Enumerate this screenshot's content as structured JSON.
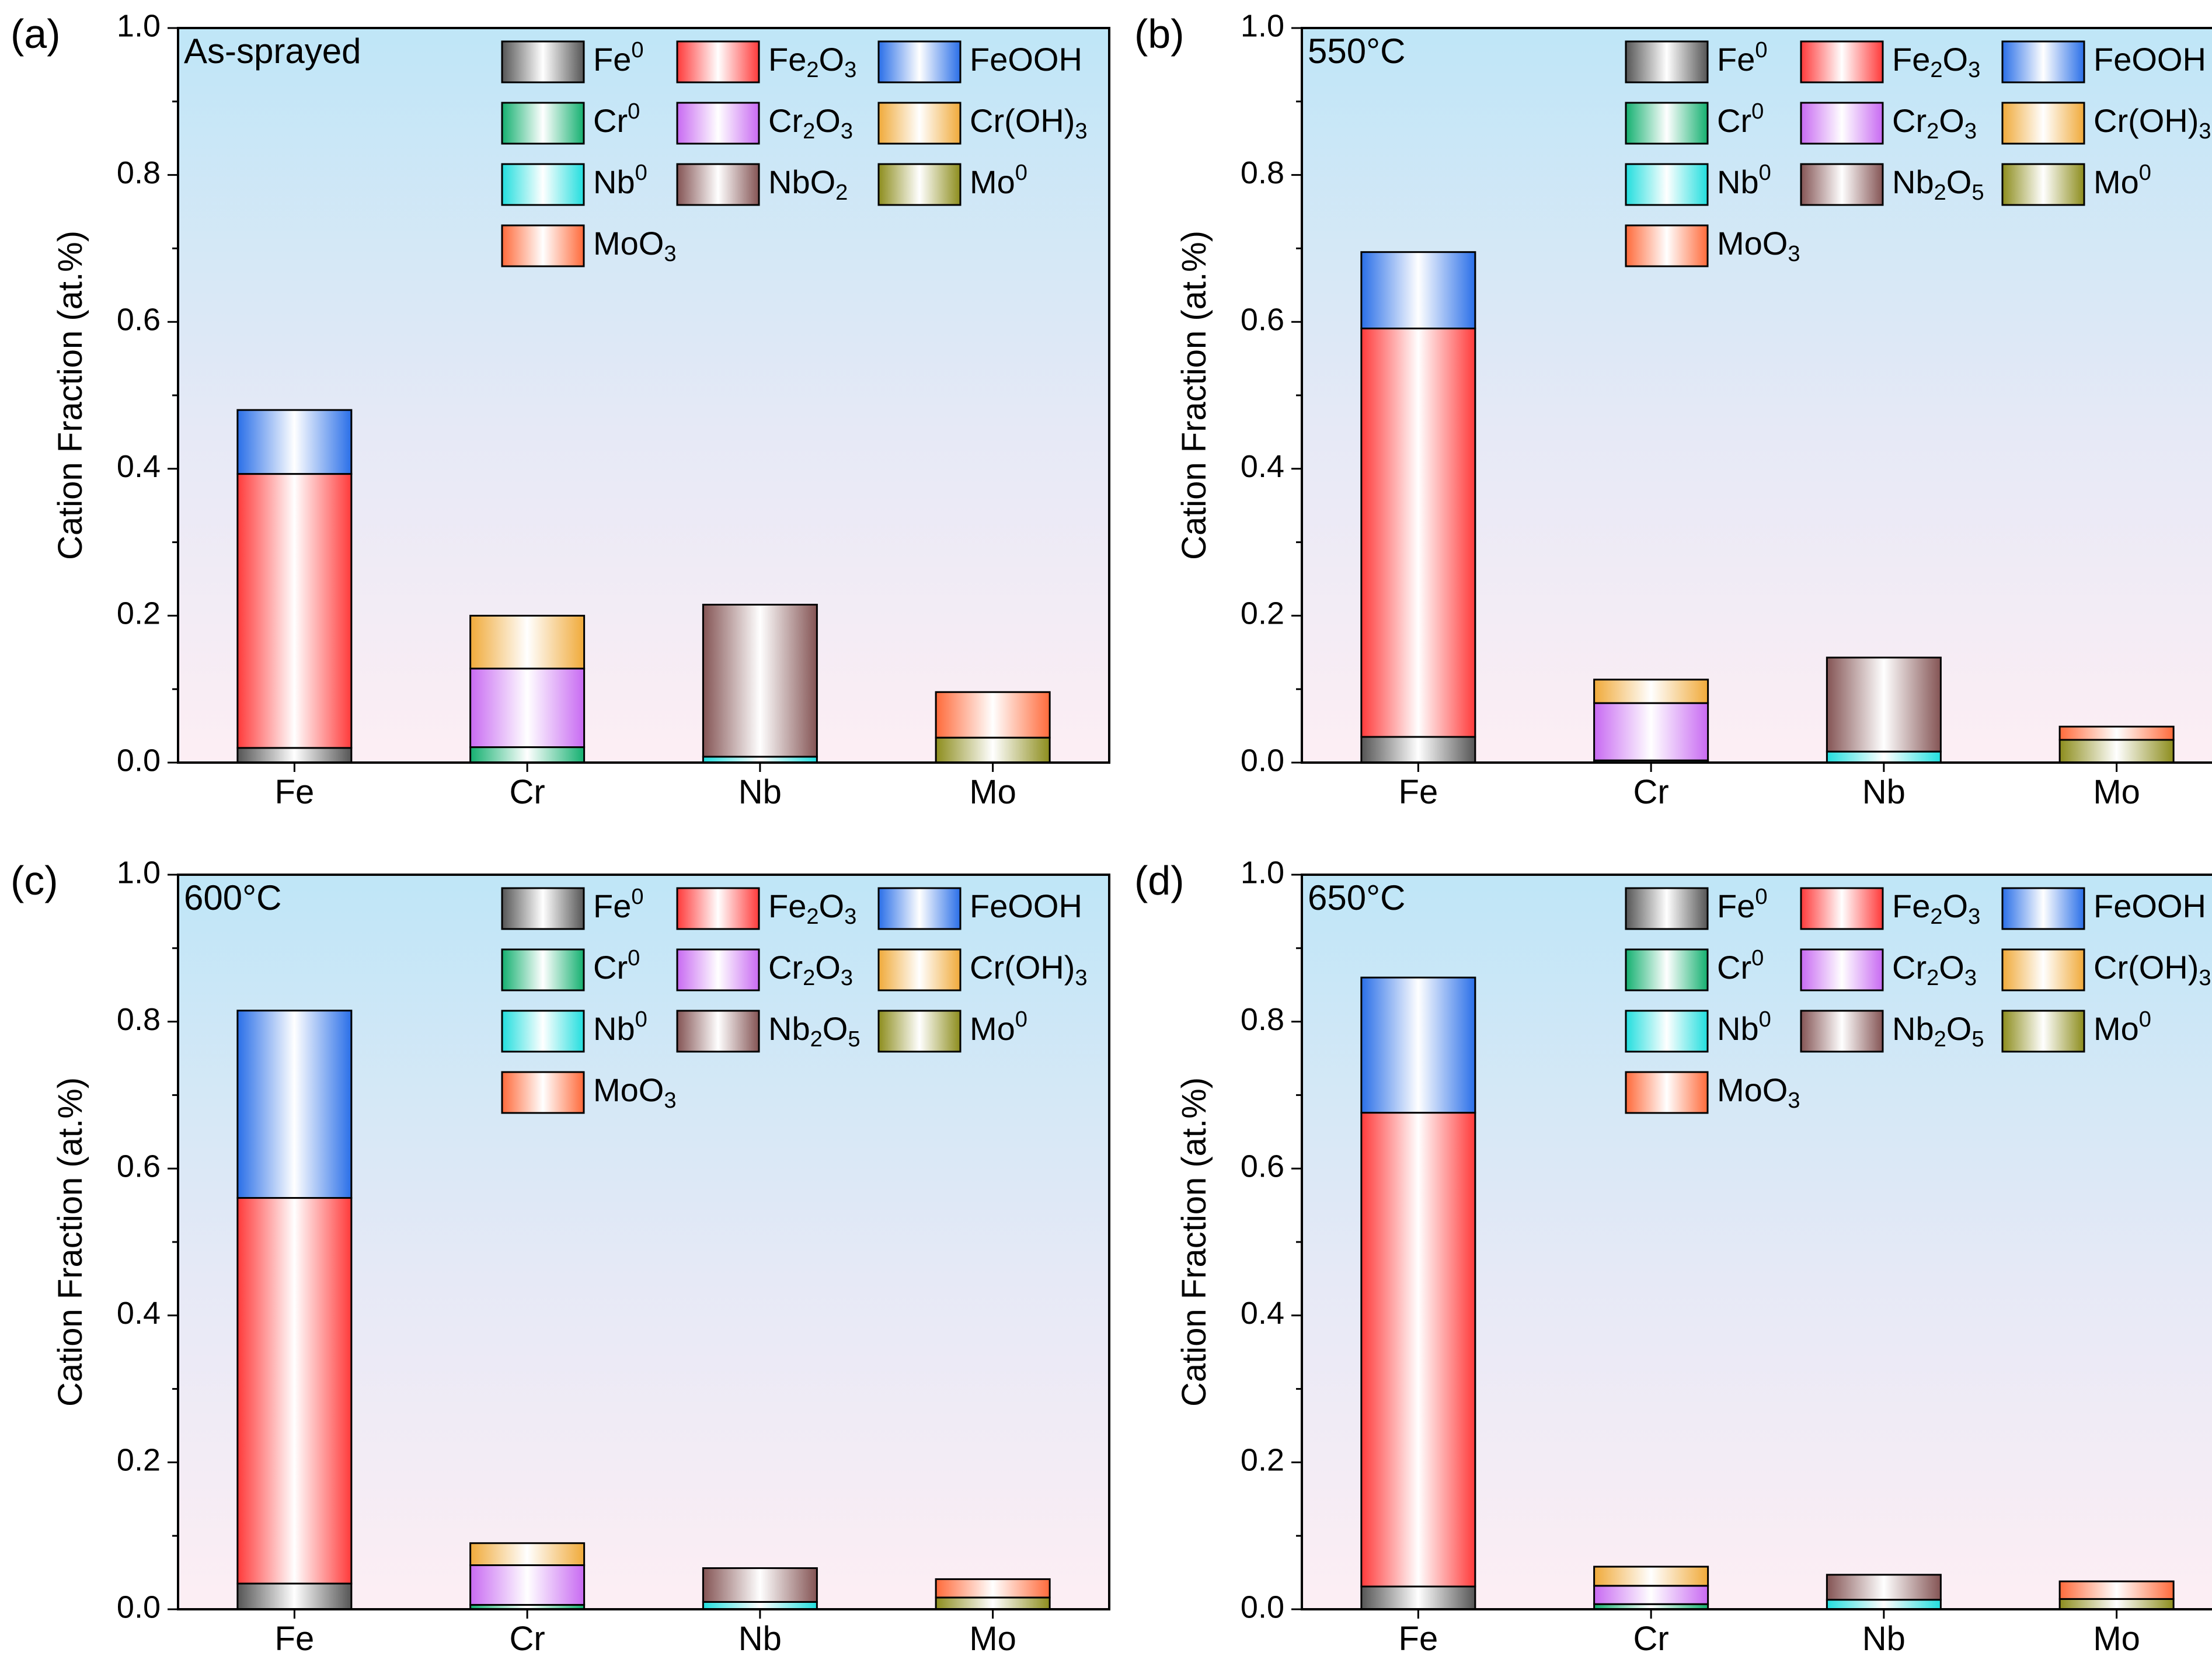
{
  "series_styles": {
    "Fe0": {
      "label": "Fe",
      "sup": "0",
      "edge": "#333333",
      "base": "#555555"
    },
    "Fe2O3": {
      "label": "Fe",
      "sub1": "2",
      "tail": "O",
      "sub2": "3",
      "edge": "#ee1b1b",
      "base": "#ff3a3a"
    },
    "FeOOH": {
      "label": "FeOOH",
      "edge": "#1a5fd6",
      "base": "#2a6fe8"
    },
    "Cr0": {
      "label": "Cr",
      "sup": "0",
      "edge": "#0f9a5a",
      "base": "#14b070"
    },
    "Cr2O3": {
      "label": "Cr",
      "sub1": "2",
      "tail": "O",
      "sub2": "3",
      "edge": "#b44fe6",
      "base": "#c86af2"
    },
    "CrOH3": {
      "label": "Cr(OH)",
      "sub1": "3",
      "edge": "#e09b27",
      "base": "#f0aa3a"
    },
    "Nb0": {
      "label": "Nb",
      "sup": "0",
      "edge": "#1ec9c9",
      "base": "#22dede"
    },
    "NbO2": {
      "label": "NbO",
      "sub1": "2",
      "edge": "#6e4444",
      "base": "#845454"
    },
    "Nb2O5": {
      "label": "Nb",
      "sub1": "2",
      "tail": "O",
      "sub2": "5",
      "edge": "#6e4444",
      "base": "#845454"
    },
    "Mo0": {
      "label": "Mo",
      "sup": "0",
      "edge": "#7a7a16",
      "base": "#8d8d1d"
    },
    "MoO3": {
      "label": "MoO",
      "sub1": "3",
      "edge": "#ff5722",
      "base": "#ff6a3a"
    }
  },
  "chart_data": [
    {
      "type": "bar",
      "stacked": true,
      "panel_label": "(a)",
      "title": "As-sprayed",
      "categories": [
        "Fe",
        "Cr",
        "Nb",
        "Mo"
      ],
      "ylabel": "Cation Fraction (at.%)",
      "ylim": [
        0,
        1.0
      ],
      "yticks": [
        "0.0",
        "0.2",
        "0.4",
        "0.6",
        "0.8",
        "1.0"
      ],
      "legend_placement": "top-right",
      "legend": [
        "Fe0",
        "Fe2O3",
        "FeOOH",
        "Cr0",
        "Cr2O3",
        "CrOH3",
        "Nb0",
        "NbO2",
        "Mo0",
        "MoO3"
      ],
      "stacks": [
        [
          [
            "Fe0",
            0.02
          ],
          [
            "Fe2O3",
            0.373
          ],
          [
            "FeOOH",
            0.087
          ]
        ],
        [
          [
            "Cr0",
            0.021
          ],
          [
            "Cr2O3",
            0.107
          ],
          [
            "CrOH3",
            0.072
          ]
        ],
        [
          [
            "Nb0",
            0.008
          ],
          [
            "NbO2",
            0.207
          ]
        ],
        [
          [
            "Mo0",
            0.034
          ],
          [
            "MoO3",
            0.062
          ]
        ]
      ]
    },
    {
      "type": "bar",
      "stacked": true,
      "panel_label": "(b)",
      "title": "550°C",
      "categories": [
        "Fe",
        "Cr",
        "Nb",
        "Mo"
      ],
      "ylabel": "Cation Fraction (at.%)",
      "ylim": [
        0,
        1.0
      ],
      "yticks": [
        "0.0",
        "0.2",
        "0.4",
        "0.6",
        "0.8",
        "1.0"
      ],
      "legend_placement": "top-right",
      "legend": [
        "Fe0",
        "Fe2O3",
        "FeOOH",
        "Cr0",
        "Cr2O3",
        "CrOH3",
        "Nb0",
        "Nb2O5",
        "Mo0",
        "MoO3"
      ],
      "stacks": [
        [
          [
            "Fe0",
            0.035
          ],
          [
            "Fe2O3",
            0.556
          ],
          [
            "FeOOH",
            0.104
          ]
        ],
        [
          [
            "Cr0",
            0.003
          ],
          [
            "Cr2O3",
            0.078
          ],
          [
            "CrOH3",
            0.032
          ]
        ],
        [
          [
            "Nb0",
            0.015
          ],
          [
            "Nb2O5",
            0.128
          ]
        ],
        [
          [
            "Mo0",
            0.031
          ],
          [
            "MoO3",
            0.018
          ]
        ]
      ]
    },
    {
      "type": "bar",
      "stacked": true,
      "panel_label": "(c)",
      "title": "600°C",
      "categories": [
        "Fe",
        "Cr",
        "Nb",
        "Mo"
      ],
      "ylabel": "Cation Fraction (at.%)",
      "ylim": [
        0,
        1.0
      ],
      "yticks": [
        "0.0",
        "0.2",
        "0.4",
        "0.6",
        "0.8",
        "1.0"
      ],
      "legend_placement": "top-right",
      "legend": [
        "Fe0",
        "Fe2O3",
        "FeOOH",
        "Cr0",
        "Cr2O3",
        "CrOH3",
        "Nb0",
        "Nb2O5",
        "Mo0",
        "MoO3"
      ],
      "stacks": [
        [
          [
            "Fe0",
            0.035
          ],
          [
            "Fe2O3",
            0.525
          ],
          [
            "FeOOH",
            0.255
          ]
        ],
        [
          [
            "Cr0",
            0.006
          ],
          [
            "Cr2O3",
            0.054
          ],
          [
            "CrOH3",
            0.03
          ]
        ],
        [
          [
            "Nb0",
            0.01
          ],
          [
            "Nb2O5",
            0.046
          ]
        ],
        [
          [
            "Mo0",
            0.016
          ],
          [
            "MoO3",
            0.025
          ]
        ]
      ]
    },
    {
      "type": "bar",
      "stacked": true,
      "panel_label": "(d)",
      "title": "650°C",
      "categories": [
        "Fe",
        "Cr",
        "Nb",
        "Mo"
      ],
      "ylabel": "Cation Fraction (at.%)",
      "ylim": [
        0,
        1.0
      ],
      "yticks": [
        "0.0",
        "0.2",
        "0.4",
        "0.6",
        "0.8",
        "1.0"
      ],
      "legend_placement": "top-right",
      "legend": [
        "Fe0",
        "Fe2O3",
        "FeOOH",
        "Cr0",
        "Cr2O3",
        "CrOH3",
        "Nb0",
        "Nb2O5",
        "Mo0",
        "MoO3"
      ],
      "stacks": [
        [
          [
            "Fe0",
            0.031
          ],
          [
            "Fe2O3",
            0.645
          ],
          [
            "FeOOH",
            0.184
          ]
        ],
        [
          [
            "Cr0",
            0.007
          ],
          [
            "Cr2O3",
            0.025
          ],
          [
            "CrOH3",
            0.026
          ]
        ],
        [
          [
            "Nb0",
            0.013
          ],
          [
            "Nb2O5",
            0.034
          ]
        ],
        [
          [
            "Mo0",
            0.014
          ],
          [
            "MoO3",
            0.024
          ]
        ]
      ]
    }
  ]
}
